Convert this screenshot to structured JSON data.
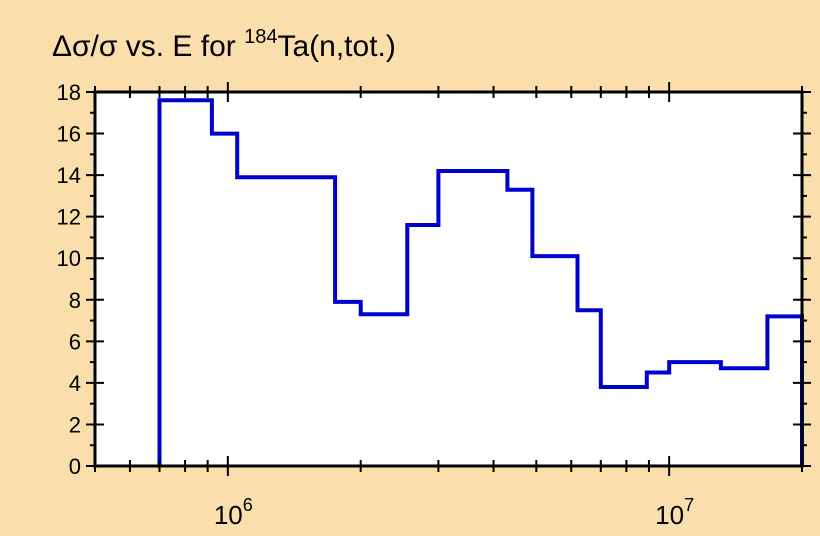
{
  "chart_data": {
    "type": "line",
    "title": {
      "main": "Δσ/σ vs. E for ",
      "superscript": "184",
      "suffix": "Ta(n,tot.)"
    },
    "xlabel": "",
    "ylabel": "",
    "x_scale": "log",
    "xlim": [
      500000,
      20000000
    ],
    "ylim": [
      0,
      18
    ],
    "yticks": [
      0,
      2,
      4,
      6,
      8,
      10,
      12,
      14,
      16,
      18
    ],
    "xtick_labels": [
      {
        "x": 1000000,
        "base": "10",
        "exp": "6"
      },
      {
        "x": 10000000,
        "base": "10",
        "exp": "7"
      }
    ],
    "grid": false,
    "series": [
      {
        "color": "#0000CC",
        "step_points": [
          [
            700000,
            0
          ],
          [
            700000,
            17.6
          ],
          [
            920000,
            17.6
          ],
          [
            920000,
            16.0
          ],
          [
            1050000,
            16.0
          ],
          [
            1050000,
            13.9
          ],
          [
            1750000,
            13.9
          ],
          [
            1750000,
            7.9
          ],
          [
            2000000,
            7.9
          ],
          [
            2000000,
            7.3
          ],
          [
            2550000,
            7.3
          ],
          [
            2550000,
            11.6
          ],
          [
            3000000,
            11.6
          ],
          [
            3000000,
            14.2
          ],
          [
            4300000,
            14.2
          ],
          [
            4300000,
            13.3
          ],
          [
            4900000,
            13.3
          ],
          [
            4900000,
            10.1
          ],
          [
            6200000,
            10.1
          ],
          [
            6200000,
            7.5
          ],
          [
            7000000,
            7.5
          ],
          [
            7000000,
            3.8
          ],
          [
            8900000,
            3.8
          ],
          [
            8900000,
            4.5
          ],
          [
            10000000,
            4.5
          ],
          [
            10000000,
            5.0
          ],
          [
            13100000,
            5.0
          ],
          [
            13100000,
            4.7
          ],
          [
            16700000,
            4.7
          ],
          [
            16700000,
            7.2
          ],
          [
            20000000,
            7.2
          ],
          [
            20000000,
            0
          ]
        ]
      }
    ]
  },
  "colors": {
    "background": "#FADFAD",
    "plot_area": "#FFFFFF",
    "series": "#0000CC"
  }
}
